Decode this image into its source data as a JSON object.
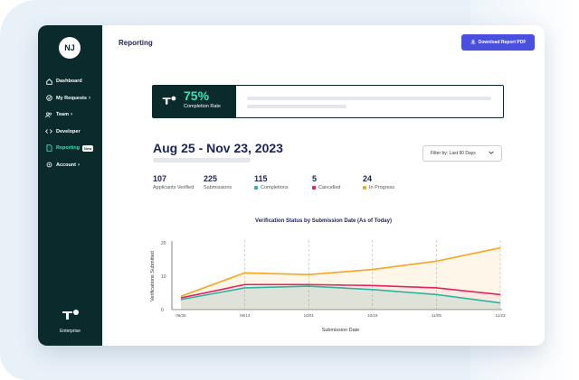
{
  "sidebar": {
    "avatar_initials": "NJ",
    "items": [
      {
        "label": "Dashboard",
        "icon": "home-icon",
        "chevron": false,
        "active": false
      },
      {
        "label": "My Requests",
        "icon": "check-circle-icon",
        "chevron": true,
        "active": false
      },
      {
        "label": "Team",
        "icon": "users-icon",
        "chevron": true,
        "active": false
      },
      {
        "label": "Developer",
        "icon": "code-icon",
        "chevron": false,
        "active": false
      },
      {
        "label": "Reporting",
        "icon": "document-icon",
        "chevron": false,
        "active": true,
        "badge": "New"
      },
      {
        "label": "Account",
        "icon": "gear-icon",
        "chevron": true,
        "active": false
      }
    ],
    "brand_label": "Enterprise"
  },
  "header": {
    "title": "Reporting",
    "download_button": "Download Report PDF"
  },
  "completion": {
    "percent": "75%",
    "label": "Completion Rate"
  },
  "date_range": "Aug 25 - Nov 23, 2023",
  "filter": {
    "label": "Filter by: Last 90 Days"
  },
  "stats": [
    {
      "value": "107",
      "label": "Applicants Verified",
      "color": ""
    },
    {
      "value": "225",
      "label": "Submissions",
      "color": ""
    },
    {
      "value": "115",
      "label": "Completions",
      "color": "#2bb5a0"
    },
    {
      "value": "5",
      "label": "Cancelled",
      "color": "#e0245e"
    },
    {
      "value": "24",
      "label": "In Progress",
      "color": "#f5a623"
    }
  ],
  "colors": {
    "sidebar": "#0b2a2b",
    "accent": "#3fe0b3",
    "button": "#4a4fe0",
    "completions": "#2bb5a0",
    "cancelled": "#e0245e",
    "in_progress": "#f5a623"
  },
  "chart_data": {
    "type": "line",
    "title": "Verification Status by Submission Date (As of Today)",
    "xlabel": "Submission Date",
    "ylabel": "Verifications Submitted",
    "categories": [
      "08/25",
      "09/13",
      "10/01",
      "10/19",
      "11/05",
      "11/23"
    ],
    "yticks": [
      0,
      10,
      20
    ],
    "ylim": [
      0,
      20
    ],
    "series": [
      {
        "name": "In Progress",
        "color": "#f5a623",
        "values": [
          4,
          11,
          10.5,
          12,
          14.5,
          18.5
        ]
      },
      {
        "name": "Cancelled",
        "color": "#e0245e",
        "values": [
          3.5,
          7.5,
          7.5,
          7.2,
          6.5,
          4.5
        ]
      },
      {
        "name": "Completions",
        "color": "#2bb5a0",
        "values": [
          3,
          6.5,
          7,
          6,
          4.5,
          2
        ]
      }
    ]
  }
}
